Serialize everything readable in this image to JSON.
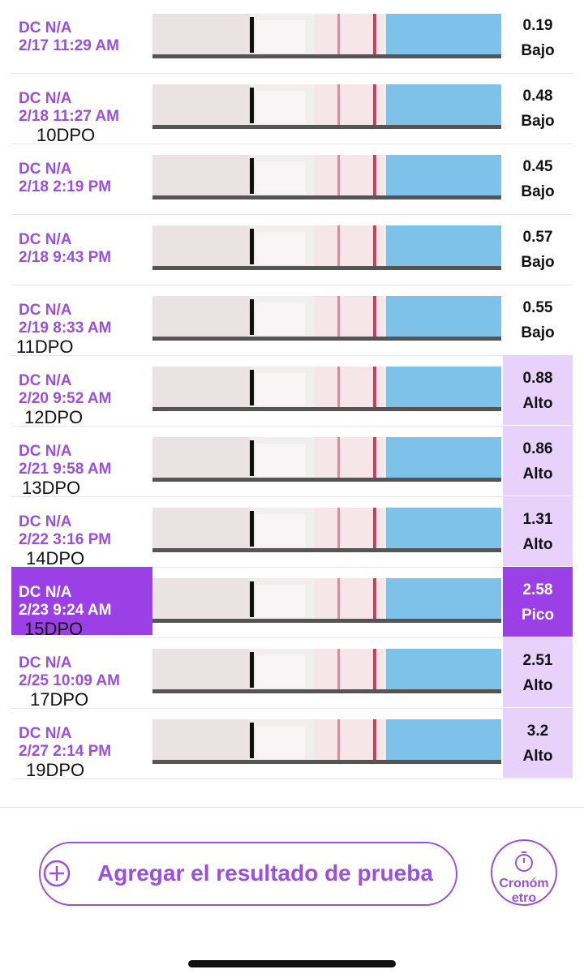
{
  "rows": [
    {
      "dc": "DC N/A",
      "date": "2/17 11:29 AM",
      "dpo": null,
      "value": "0.19",
      "level": "Bajo"
    },
    {
      "dc": "DC N/A",
      "date": "2/18 11:27 AM",
      "dpo": "10DPO",
      "value": "0.48",
      "level": "Bajo"
    },
    {
      "dc": "DC N/A",
      "date": "2/18 2:19 PM",
      "dpo": null,
      "value": "0.45",
      "level": "Bajo"
    },
    {
      "dc": "DC N/A",
      "date": "2/18 9:43 PM",
      "dpo": null,
      "value": "0.57",
      "level": "Bajo"
    },
    {
      "dc": "DC N/A",
      "date": "2/19 8:33 AM",
      "dpo": "11DPO",
      "value": "0.55",
      "level": "Bajo"
    },
    {
      "dc": "DC N/A",
      "date": "2/20 9:52 AM",
      "dpo": "12DPO",
      "value": "0.88",
      "level": "Alto"
    },
    {
      "dc": "DC N/A",
      "date": "2/21 9:58 AM",
      "dpo": "13DPO",
      "value": "0.86",
      "level": "Alto"
    },
    {
      "dc": "DC N/A",
      "date": "2/22 3:16 PM",
      "dpo": "14DPO",
      "value": "1.31",
      "level": "Alto"
    },
    {
      "dc": "DC N/A",
      "date": "2/23 9:24 AM",
      "dpo": "15DPO",
      "value": "2.58",
      "level": "Pico"
    },
    {
      "dc": "DC N/A",
      "date": "2/25 10:09 AM",
      "dpo": "17DPO",
      "value": "2.51",
      "level": "Alto"
    },
    {
      "dc": "DC N/A",
      "date": "2/27 2:14 PM",
      "dpo": "19DPO",
      "value": "3.2",
      "level": "Alto"
    }
  ],
  "add_button": "Agregar el resultado de prueba",
  "timer_button": "Cronómetro"
}
